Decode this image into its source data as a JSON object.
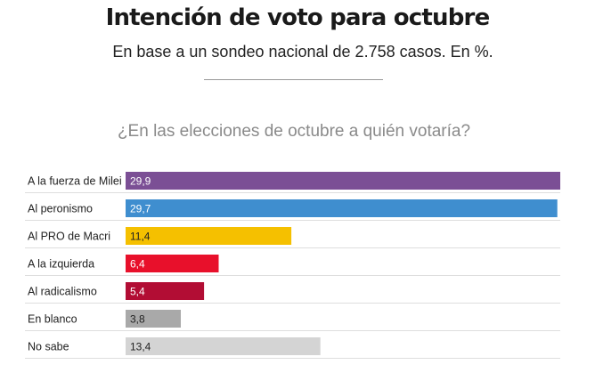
{
  "header": {
    "title": "Intención de voto para octubre",
    "subtitle": "En base a un sondeo nacional de 2.758 casos. En %."
  },
  "chart_data": {
    "type": "bar",
    "orientation": "horizontal",
    "title": "Intención de voto para octubre",
    "subtitle": "En base a un sondeo nacional de 2.758 casos. En %.",
    "question": "¿En las elecciones de octubre a quién votaría?",
    "categories": [
      "A la fuerza de Milei",
      "Al peronismo",
      "Al PRO de Macri",
      "A la izquierda",
      "Al radicalismo",
      "En blanco",
      "No sabe"
    ],
    "values": [
      29.9,
      29.7,
      11.4,
      6.4,
      5.4,
      3.8,
      13.4
    ],
    "value_labels": [
      "29,9",
      "29,7",
      "11,4",
      "6,4",
      "5,4",
      "3,8",
      "13,4"
    ],
    "colors": [
      "#7b4f95",
      "#3f8ecf",
      "#f5c000",
      "#e8102b",
      "#b20d34",
      "#a9a9a9",
      "#d4d4d4"
    ],
    "label_colors": [
      "#ffffff",
      "#ffffff",
      "#222222",
      "#ffffff",
      "#ffffff",
      "#222222",
      "#222222"
    ],
    "xlim": [
      0,
      29.9
    ],
    "grid": "row-separators",
    "legend": "none"
  }
}
